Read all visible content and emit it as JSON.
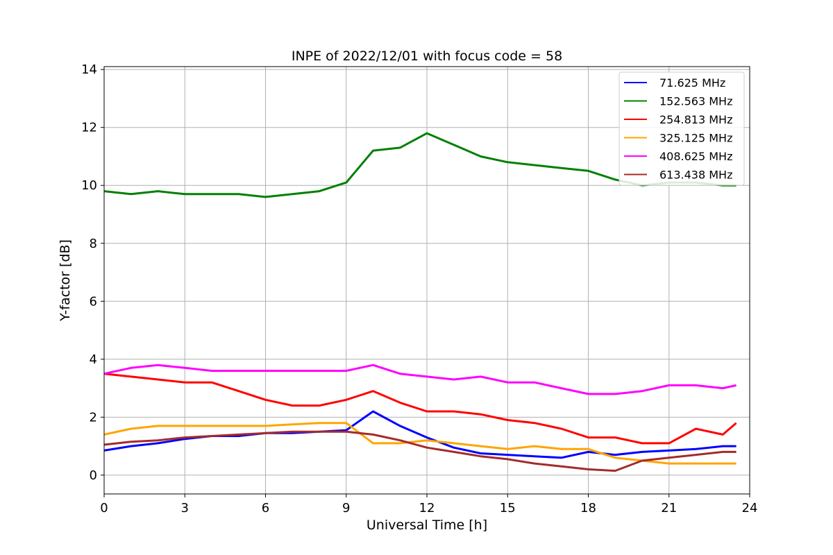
{
  "chart_data": {
    "type": "line",
    "title": "INPE of 2022/12/01 with focus code = 58",
    "xlabel": "Universal Time [h]",
    "ylabel": "Y-factor [dB]",
    "xlim": [
      0,
      24
    ],
    "ylim": [
      -0.65,
      14.1
    ],
    "xticks": [
      0,
      3,
      6,
      9,
      12,
      15,
      18,
      21,
      24
    ],
    "yticks": [
      0,
      2,
      4,
      6,
      8,
      10,
      12,
      14
    ],
    "grid": true,
    "legend_position": "top-right",
    "x": [
      0,
      1,
      2,
      3,
      4,
      5,
      6,
      7,
      8,
      9,
      10,
      11,
      12,
      13,
      14,
      15,
      16,
      17,
      18,
      19,
      20,
      21,
      22,
      23,
      23.5
    ],
    "series": [
      {
        "name": " 71.625 MHz",
        "color": "#0000ff",
        "values": [
          0.85,
          1.0,
          1.1,
          1.25,
          1.35,
          1.35,
          1.45,
          1.45,
          1.5,
          1.55,
          2.2,
          1.7,
          1.3,
          0.95,
          0.75,
          0.7,
          0.65,
          0.6,
          0.8,
          0.7,
          0.8,
          0.85,
          0.9,
          1.0,
          1.0
        ]
      },
      {
        "name": "152.563 MHz",
        "color": "#008000",
        "values": [
          9.8,
          9.7,
          9.8,
          9.7,
          9.7,
          9.7,
          9.6,
          9.7,
          9.8,
          10.1,
          11.2,
          11.3,
          11.8,
          11.4,
          11.0,
          10.8,
          10.7,
          10.6,
          10.5,
          10.2,
          10.0,
          10.1,
          10.1,
          10.0,
          10.0
        ]
      },
      {
        "name": "254.813 MHz",
        "color": "#ff0000",
        "values": [
          3.5,
          3.4,
          3.3,
          3.2,
          3.2,
          2.9,
          2.6,
          2.4,
          2.4,
          2.6,
          2.9,
          2.5,
          2.2,
          2.2,
          2.1,
          1.9,
          1.8,
          1.6,
          1.3,
          1.3,
          1.1,
          1.1,
          1.6,
          1.4,
          1.8
        ]
      },
      {
        "name": "325.125 MHz",
        "color": "#ffa500",
        "values": [
          1.4,
          1.6,
          1.7,
          1.7,
          1.7,
          1.7,
          1.7,
          1.75,
          1.8,
          1.8,
          1.1,
          1.1,
          1.2,
          1.1,
          1.0,
          0.9,
          1.0,
          0.9,
          0.9,
          0.6,
          0.5,
          0.4,
          0.4,
          0.4,
          0.4
        ]
      },
      {
        "name": "408.625 MHz",
        "color": "#ff00ff",
        "values": [
          3.5,
          3.7,
          3.8,
          3.7,
          3.6,
          3.6,
          3.6,
          3.6,
          3.6,
          3.6,
          3.8,
          3.5,
          3.4,
          3.3,
          3.4,
          3.2,
          3.2,
          3.0,
          2.8,
          2.8,
          2.9,
          3.1,
          3.1,
          3.0,
          3.1
        ]
      },
      {
        "name": "613.438 MHz",
        "color": "#a52a2a",
        "values": [
          1.05,
          1.15,
          1.2,
          1.3,
          1.35,
          1.4,
          1.45,
          1.5,
          1.5,
          1.5,
          1.4,
          1.2,
          0.95,
          0.8,
          0.65,
          0.55,
          0.4,
          0.3,
          0.2,
          0.15,
          0.5,
          0.6,
          0.7,
          0.8,
          0.8
        ]
      }
    ]
  }
}
